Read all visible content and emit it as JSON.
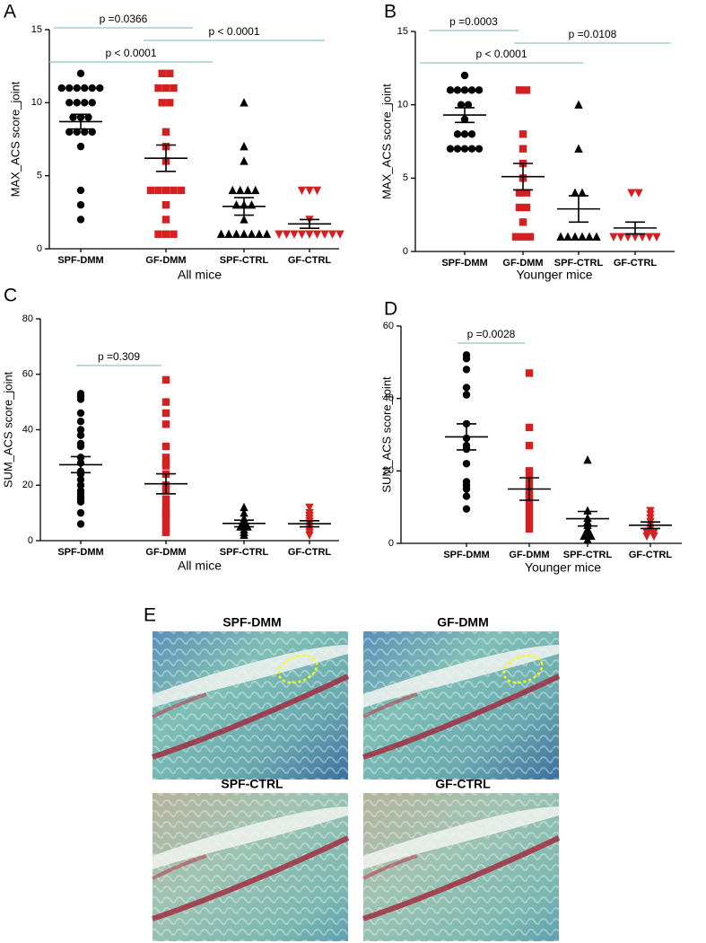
{
  "chart_data": [
    {
      "type": "dot",
      "label": "A",
      "ylabel": "MAX_ACS score_joint",
      "xlabel": "All mice",
      "ylim": [
        0,
        15
      ],
      "yticks": [
        0,
        5,
        10,
        15
      ],
      "series": [
        {
          "name": "SPF-DMM",
          "color": "#000000",
          "marker": "circle",
          "values": [
            12,
            11,
            11,
            11,
            11,
            11,
            11,
            10,
            10,
            10,
            10,
            9,
            9,
            9,
            8,
            8,
            8,
            8,
            7,
            4,
            3,
            2
          ],
          "mean": 8.7,
          "sem": 0.5
        },
        {
          "name": "GF-DMM",
          "color": "#d42020",
          "marker": "square",
          "values": [
            12,
            12,
            11,
            11,
            11,
            10,
            10,
            8,
            7,
            6,
            4,
            4,
            4,
            4,
            4,
            3,
            2,
            1,
            1,
            1
          ],
          "mean": 6.2,
          "sem": 0.9
        },
        {
          "name": "SPF-CTRL",
          "color": "#000000",
          "marker": "triangle",
          "values": [
            10,
            7,
            6,
            4,
            4,
            4,
            4,
            3,
            3,
            3,
            2,
            1,
            1,
            1,
            1,
            1,
            1,
            1
          ],
          "mean": 2.9,
          "sem": 0.6
        },
        {
          "name": "GF-CTRL",
          "color": "#d42020",
          "marker": "triangle-down",
          "values": [
            4,
            4,
            4,
            2,
            1,
            1,
            1,
            1,
            1,
            1,
            1,
            1,
            1
          ],
          "mean": 1.7,
          "sem": 0.3
        }
      ],
      "comparisons": [
        {
          "text": "p =0.0366",
          "between": [
            "SPF-DMM",
            "GF-DMM"
          ]
        },
        {
          "text": "p < 0.0001",
          "between": [
            "SPF-DMM",
            "SPF-CTRL"
          ]
        },
        {
          "text": "p < 0.0001",
          "between": [
            "GF-DMM",
            "GF-CTRL"
          ]
        }
      ]
    },
    {
      "type": "dot",
      "label": "B",
      "ylabel": "MAX_ACS score_joint",
      "xlabel": "Younger mice",
      "ylim": [
        0,
        15
      ],
      "yticks": [
        0,
        5,
        10,
        15
      ],
      "series": [
        {
          "name": "SPF-DMM",
          "color": "#000000",
          "marker": "circle",
          "values": [
            12,
            11,
            11,
            11,
            11,
            11,
            10,
            10,
            9,
            8,
            8,
            8,
            7,
            7,
            7,
            7,
            7
          ],
          "mean": 9.3,
          "sem": 0.5
        },
        {
          "name": "GF-DMM",
          "color": "#d42020",
          "marker": "square",
          "values": [
            11,
            11,
            8,
            7,
            6,
            5,
            4,
            4,
            3,
            3,
            2,
            1,
            1,
            1
          ],
          "mean": 5.1,
          "sem": 0.9
        },
        {
          "name": "SPF-CTRL",
          "color": "#000000",
          "marker": "triangle",
          "values": [
            10,
            7,
            4,
            4,
            1,
            1,
            1,
            1,
            1,
            1
          ],
          "mean": 2.9,
          "sem": 0.9
        },
        {
          "name": "GF-CTRL",
          "color": "#d42020",
          "marker": "triangle-down",
          "values": [
            4,
            4,
            1,
            1,
            1,
            1,
            1,
            1,
            1
          ],
          "mean": 1.6,
          "sem": 0.4
        }
      ],
      "comparisons": [
        {
          "text": "p =0.0003",
          "between": [
            "SPF-DMM",
            "GF-DMM"
          ]
        },
        {
          "text": "p < 0.0001",
          "between": [
            "SPF-DMM",
            "SPF-CTRL"
          ]
        },
        {
          "text": "p =0.0108",
          "between": [
            "GF-DMM",
            "GF-CTRL"
          ]
        }
      ]
    },
    {
      "type": "dot",
      "label": "C",
      "ylabel": "SUM_ACS score_joint",
      "xlabel": "All mice",
      "ylim": [
        0,
        80
      ],
      "yticks": [
        0,
        20,
        40,
        60,
        80
      ],
      "series": [
        {
          "name": "SPF-DMM",
          "color": "#000000",
          "marker": "circle",
          "values": [
            53,
            52,
            51,
            46,
            43,
            40,
            38,
            35,
            34,
            30,
            28,
            25,
            24,
            22,
            20,
            18,
            17,
            16,
            15,
            14,
            10,
            6
          ],
          "mean": 27.4,
          "sem": 2.9
        },
        {
          "name": "GF-DMM",
          "color": "#d42020",
          "marker": "square",
          "values": [
            58,
            50,
            46,
            42,
            34,
            30,
            28,
            27,
            24,
            20,
            18,
            15,
            13,
            11,
            10,
            9,
            8,
            6,
            4,
            3
          ],
          "mean": 20.5,
          "sem": 3.6
        },
        {
          "name": "SPF-CTRL",
          "color": "#000000",
          "marker": "triangle",
          "values": [
            12,
            10,
            8,
            7,
            6,
            5,
            5,
            4,
            3,
            2
          ],
          "mean": 6.2,
          "sem": 1.2
        },
        {
          "name": "GF-CTRL",
          "color": "#d42020",
          "marker": "triangle-down",
          "values": [
            12,
            10,
            9,
            8,
            7,
            6,
            5,
            4,
            3,
            2
          ],
          "mean": 6.1,
          "sem": 1.1
        }
      ],
      "comparisons": [
        {
          "text": "p =0.309",
          "between": [
            "SPF-DMM",
            "GF-DMM"
          ]
        }
      ]
    },
    {
      "type": "dot",
      "label": "D",
      "ylabel": "SUM_ACS score_joint",
      "xlabel": "Younger mice",
      "ylim": [
        0,
        60
      ],
      "yticks": [
        0,
        20,
        40,
        60
      ],
      "series": [
        {
          "name": "SPF-DMM",
          "color": "#000000",
          "marker": "circle",
          "values": [
            52,
            51,
            48,
            43,
            41,
            33,
            29,
            27,
            26,
            22,
            17,
            16,
            15,
            13,
            9.5
          ],
          "mean": 29.4,
          "sem": 3.6
        },
        {
          "name": "GF-DMM",
          "color": "#d42020",
          "marker": "square",
          "values": [
            47,
            32,
            27,
            20,
            18,
            16,
            14,
            13,
            12,
            10,
            8,
            6,
            4
          ],
          "mean": 15,
          "sem": 3.1
        },
        {
          "name": "SPF-CTRL",
          "color": "#000000",
          "marker": "triangle",
          "values": [
            23,
            9,
            7,
            6,
            5,
            4,
            3,
            2,
            2,
            1
          ],
          "mean": 6.8,
          "sem": 2
        },
        {
          "name": "GF-CTRL",
          "color": "#d42020",
          "marker": "triangle-down",
          "values": [
            9,
            8,
            7,
            6,
            5,
            4,
            3,
            3,
            2,
            2
          ],
          "mean": 5,
          "sem": 0.9
        }
      ],
      "comparisons": [
        {
          "text": "p =0.0028",
          "between": [
            "SPF-DMM",
            "GF-DMM"
          ]
        }
      ]
    }
  ],
  "panel_e": {
    "label": "E",
    "images": [
      "SPF-DMM",
      "GF-DMM",
      "SPF-CTRL",
      "GF-CTRL"
    ]
  }
}
